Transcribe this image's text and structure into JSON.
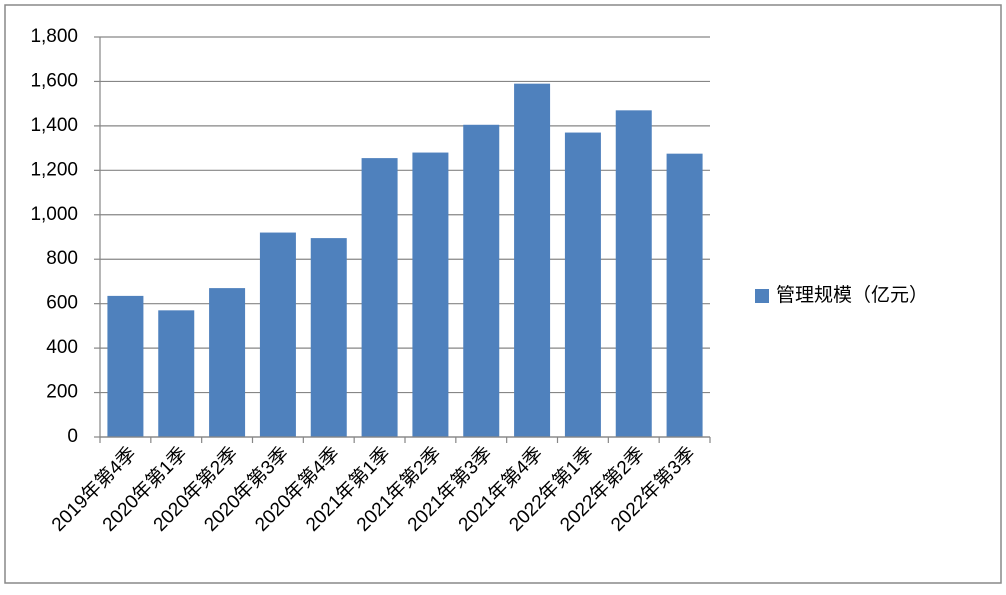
{
  "chart_data": {
    "type": "bar",
    "categories": [
      "2019年第4季",
      "2020年第1季",
      "2020年第2季",
      "2020年第3季",
      "2020年第4季",
      "2021年第1季",
      "2021年第2季",
      "2021年第3季",
      "2021年第4季",
      "2022年第1季",
      "2022年第2季",
      "2022年第3季"
    ],
    "series": [
      {
        "name": "管理规模（亿元）",
        "color": "#4f81bd",
        "values": [
          635,
          570,
          670,
          920,
          895,
          1255,
          1280,
          1405,
          1590,
          1370,
          1470,
          1275
        ]
      }
    ],
    "ylim": [
      0,
      1800
    ],
    "yticks": [
      0,
      200,
      400,
      600,
      800,
      {
        "value": 1000,
        "label": "1,000"
      },
      {
        "value": 1200,
        "label": "1,200"
      },
      {
        "value": 1400,
        "label": "1,400"
      },
      {
        "value": 1600,
        "label": "1,600"
      },
      {
        "value": 1800,
        "label": "1,800"
      }
    ],
    "grid": true,
    "legend": "right"
  }
}
